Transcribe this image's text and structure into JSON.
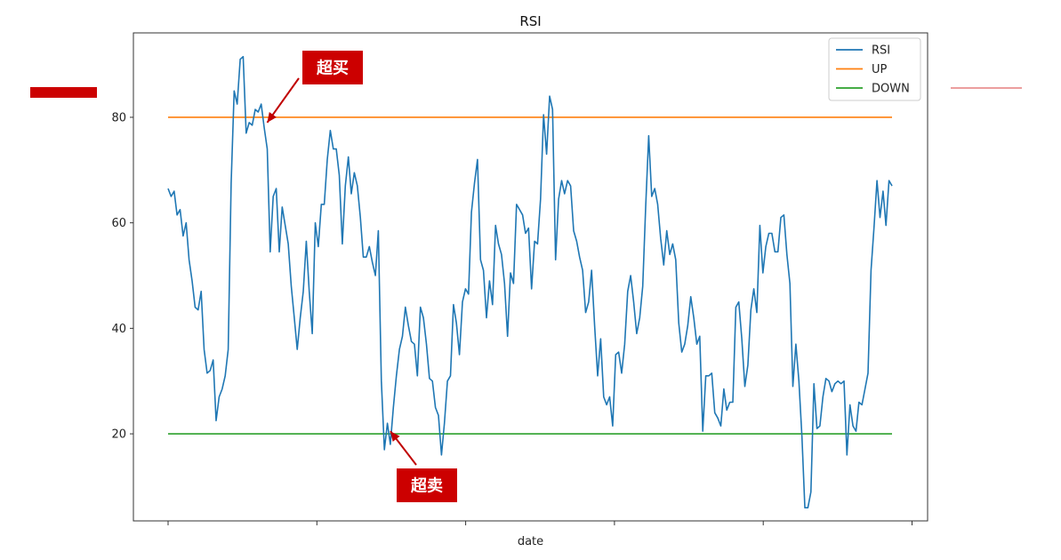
{
  "chart_data": {
    "type": "line",
    "title": "RSI",
    "xlabel": "date",
    "ylabel": "",
    "ylim": [
      3.5,
      96
    ],
    "yticks": [
      20,
      40,
      60,
      80
    ],
    "x_tick_count": 6,
    "grid": false,
    "legend_position": "top-right",
    "series": [
      {
        "name": "RSI",
        "color": "#1f77b4",
        "values": [
          66.5,
          65,
          66,
          61.5,
          62.5,
          57.5,
          60,
          53,
          49,
          44,
          43.5,
          47,
          36,
          31.5,
          32,
          34,
          22.5,
          27,
          28.5,
          31,
          36,
          67.5,
          85,
          82.5,
          91,
          91.5,
          77,
          79,
          78.5,
          81.5,
          81,
          82.5,
          78,
          74,
          54.5,
          65,
          66.5,
          54.5,
          63,
          59.5,
          56,
          48,
          42,
          36,
          42,
          47,
          56.5,
          47,
          39,
          60,
          55.5,
          63.5,
          63.5,
          72,
          77.5,
          74,
          74,
          69,
          56,
          67,
          72.5,
          65.5,
          69.5,
          67,
          61,
          53.5,
          53.5,
          55.5,
          52.5,
          50,
          58.5,
          30,
          17,
          22,
          18,
          25,
          31,
          36,
          38.5,
          44,
          40.5,
          37.5,
          37,
          31,
          44,
          42,
          37,
          30.5,
          30,
          25,
          23.5,
          16,
          22,
          30,
          31,
          44.5,
          41,
          35,
          45,
          47.5,
          46.5,
          62,
          67.5,
          72,
          53,
          51,
          42,
          49,
          44.5,
          59.5,
          56,
          54,
          48.5,
          38.5,
          50.5,
          48.5,
          63.5,
          62.5,
          61.5,
          58,
          59,
          47.5,
          56.5,
          56,
          64.5,
          80.5,
          73,
          84,
          81.5,
          53,
          64.5,
          68,
          65.5,
          68,
          67,
          58.5,
          56.5,
          53.5,
          51,
          43,
          45,
          51,
          40.5,
          31,
          38,
          27,
          25.5,
          27,
          21.5,
          35,
          35.5,
          31.5,
          37,
          47,
          50,
          45,
          39,
          42,
          48,
          63,
          76.5,
          65,
          66.5,
          63.5,
          57,
          52,
          58.5,
          54,
          56,
          53,
          41,
          35.5,
          37,
          40.5,
          46,
          42,
          37,
          38.5,
          20.5,
          31,
          31,
          31.5,
          24,
          23,
          21.5,
          28.5,
          24.5,
          26,
          26,
          44,
          45,
          38,
          29,
          33,
          43.5,
          47.5,
          43,
          59.5,
          50.5,
          55.5,
          58,
          58,
          54.5,
          54.5,
          61,
          61.5,
          54,
          48.5,
          29,
          37,
          30,
          19.5,
          6,
          6,
          9,
          29.5,
          21,
          21.5,
          27,
          30.5,
          30,
          28,
          29.5,
          30,
          29.5,
          30,
          16,
          25.5,
          21.5,
          20.5,
          26,
          25.5,
          28.5,
          31.5,
          51,
          59,
          68,
          61,
          66,
          59.5,
          68,
          67
        ]
      },
      {
        "name": "UP",
        "color": "#ff7f0e",
        "constant": 80
      },
      {
        "name": "DOWN",
        "color": "#2ca02c",
        "constant": 20
      }
    ],
    "annotations": [
      {
        "text": "超买",
        "target_index": 33,
        "target_y": 79
      },
      {
        "text": "超卖",
        "target_index": 74,
        "target_y": 20.5
      }
    ],
    "annotation_color": "#c00000"
  }
}
